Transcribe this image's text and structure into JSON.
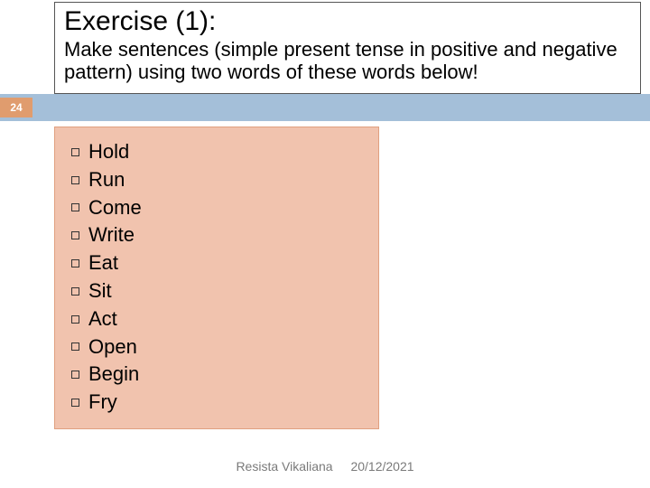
{
  "title": "Exercise (1):",
  "subtitle": "Make sentences (simple present tense in positive and negative pattern) using two words of these words below!",
  "page_number": "24",
  "words": [
    "Hold",
    "Run",
    "Come",
    "Write",
    "Eat",
    "Sit",
    "Act",
    "Open",
    "Begin",
    "Fry"
  ],
  "footer_author": "Resista Vikaliana",
  "footer_date": "20/12/2021",
  "colors": {
    "blue_bar": "#a4bfd9",
    "badge_bg": "#e09c6e",
    "word_box_bg": "#f1c3ae",
    "word_box_border": "#e0a080",
    "footer_text": "#7a7a7a"
  }
}
